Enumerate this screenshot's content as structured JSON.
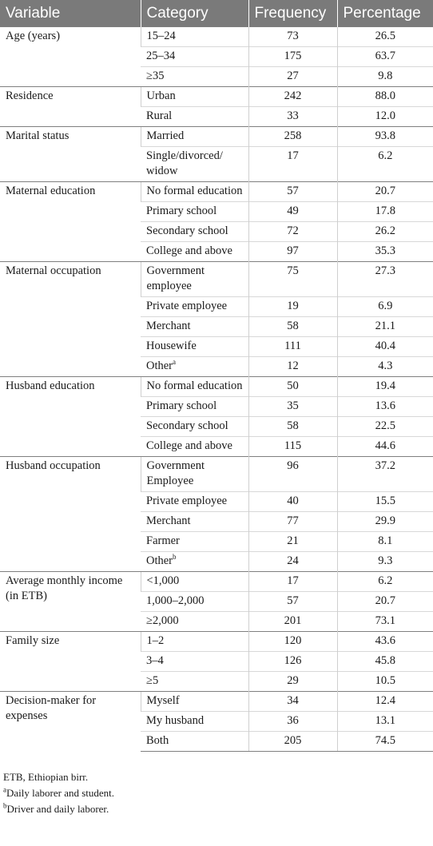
{
  "table": {
    "columns": [
      "Variable",
      "Category",
      "Frequency",
      "Percentage"
    ],
    "groups": [
      {
        "variable": "Age (years)",
        "rows": [
          {
            "category": "15–24",
            "frequency": "73",
            "percentage": "26.5"
          },
          {
            "category": "25–34",
            "frequency": "175",
            "percentage": "63.7"
          },
          {
            "category": "≥35",
            "frequency": "27",
            "percentage": "9.8"
          }
        ]
      },
      {
        "variable": "Residence",
        "rows": [
          {
            "category": "Urban",
            "frequency": "242",
            "percentage": "88.0"
          },
          {
            "category": "Rural",
            "frequency": "33",
            "percentage": "12.0"
          }
        ]
      },
      {
        "variable": "Marital status",
        "rows": [
          {
            "category": "Married",
            "frequency": "258",
            "percentage": "93.8"
          },
          {
            "category": "Single/divorced/ widow",
            "frequency": "17",
            "percentage": "6.2"
          }
        ]
      },
      {
        "variable": "Maternal education",
        "rows": [
          {
            "category": "No formal education",
            "frequency": "57",
            "percentage": "20.7"
          },
          {
            "category": "Primary school",
            "frequency": "49",
            "percentage": "17.8"
          },
          {
            "category": "Secondary school",
            "frequency": "72",
            "percentage": "26.2"
          },
          {
            "category": "College and above",
            "frequency": "97",
            "percentage": "35.3"
          }
        ]
      },
      {
        "variable": "Maternal occupation",
        "rows": [
          {
            "category": "Government employee",
            "frequency": "75",
            "percentage": "27.3"
          },
          {
            "category": "Private employee",
            "frequency": "19",
            "percentage": "6.9"
          },
          {
            "category": "Merchant",
            "frequency": "58",
            "percentage": "21.1"
          },
          {
            "category": "Housewife",
            "frequency": "111",
            "percentage": "40.4"
          },
          {
            "category": "Other",
            "sup": "a",
            "frequency": "12",
            "percentage": "4.3"
          }
        ]
      },
      {
        "variable": "Husband education",
        "rows": [
          {
            "category": "No formal education",
            "frequency": "50",
            "percentage": "19.4"
          },
          {
            "category": "Primary school",
            "frequency": "35",
            "percentage": "13.6"
          },
          {
            "category": "Secondary school",
            "frequency": "58",
            "percentage": "22.5"
          },
          {
            "category": "College and above",
            "frequency": "115",
            "percentage": "44.6"
          }
        ]
      },
      {
        "variable": "Husband occupation",
        "rows": [
          {
            "category": "Government Employee",
            "frequency": "96",
            "percentage": "37.2"
          },
          {
            "category": "Private employee",
            "frequency": "40",
            "percentage": "15.5"
          },
          {
            "category": "Merchant",
            "frequency": "77",
            "percentage": "29.9"
          },
          {
            "category": "Farmer",
            "frequency": "21",
            "percentage": "8.1"
          },
          {
            "category": "Other",
            "sup": "b",
            "frequency": "24",
            "percentage": "9.3"
          }
        ]
      },
      {
        "variable": "Average monthly income (in ETB)",
        "rows": [
          {
            "category": "<1,000",
            "frequency": "17",
            "percentage": "6.2"
          },
          {
            "category": "1,000–2,000",
            "frequency": "57",
            "percentage": "20.7"
          },
          {
            "category": "≥2,000",
            "frequency": "201",
            "percentage": "73.1"
          }
        ]
      },
      {
        "variable": "Family size",
        "rows": [
          {
            "category": "1–2",
            "frequency": "120",
            "percentage": "43.6"
          },
          {
            "category": "3–4",
            "frequency": "126",
            "percentage": "45.8"
          },
          {
            "category": "≥5",
            "frequency": "29",
            "percentage": "10.5"
          }
        ]
      },
      {
        "variable": "Decision-maker for expenses",
        "rows": [
          {
            "category": "Myself",
            "frequency": "34",
            "percentage": "12.4"
          },
          {
            "category": "My husband",
            "frequency": "36",
            "percentage": "13.1"
          },
          {
            "category": "Both",
            "frequency": "205",
            "percentage": "74.5"
          }
        ]
      }
    ]
  },
  "footnotes": [
    {
      "mark": "",
      "text": "ETB, Ethiopian birr."
    },
    {
      "mark": "a",
      "text": "Daily laborer and student."
    },
    {
      "mark": "b",
      "text": "Driver and daily laborer."
    }
  ]
}
